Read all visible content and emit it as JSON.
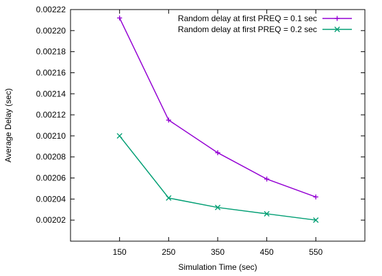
{
  "chart_data": {
    "type": "line",
    "title": "",
    "xlabel": "Simulation Time (sec)",
    "ylabel": "Average Delay (sec)",
    "xlim": [
      50,
      650
    ],
    "ylim": [
      0.002,
      0.00222
    ],
    "x": [
      150,
      250,
      350,
      450,
      550
    ],
    "x_ticks": [
      "150",
      "250",
      "350",
      "450",
      "550"
    ],
    "y_ticks": [
      "0.00202",
      "0.00204",
      "0.00206",
      "0.00208",
      "0.00210",
      "0.00212",
      "0.00214",
      "0.00216",
      "0.00218",
      "0.00220",
      "0.00222"
    ],
    "y_tick_values": [
      0.00202,
      0.00204,
      0.00206,
      0.00208,
      0.0021,
      0.00212,
      0.00214,
      0.00216,
      0.00218,
      0.0022,
      0.00222
    ],
    "grid": false,
    "legend_position": "top-right",
    "series": [
      {
        "name": "Random delay at first PREQ = 0.1 sec",
        "values": [
          0.002212,
          0.002115,
          0.002084,
          0.002059,
          0.002042
        ],
        "color": "#9400d3",
        "marker": "plus"
      },
      {
        "name": "Random delay at first PREQ = 0.2 sec",
        "values": [
          0.0021,
          0.002041,
          0.002032,
          0.002026,
          0.00202
        ],
        "color": "#009e73",
        "marker": "cross"
      }
    ]
  }
}
